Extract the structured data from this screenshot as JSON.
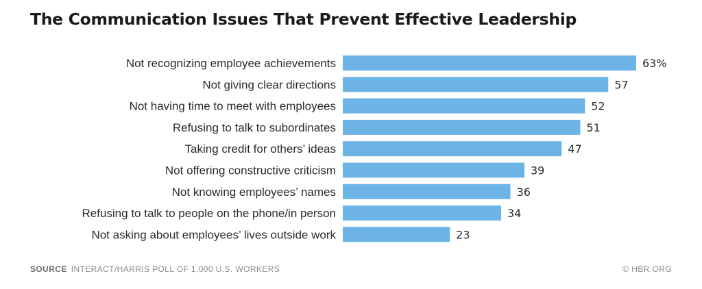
{
  "chart_data": {
    "type": "bar",
    "orientation": "horizontal",
    "title": "The Communication Issues That Prevent Effective Leadership",
    "categories": [
      "Not recognizing employee achievements",
      "Not giving clear directions",
      "Not having time to meet with employees",
      "Refusing to talk to subordinates",
      "Taking credit for others’ ideas",
      "Not offering constructive criticism",
      "Not knowing employees’ names",
      "Refusing to talk to people on the phone/in person",
      "Not asking about employees’ lives outside work"
    ],
    "values": [
      63,
      57,
      52,
      51,
      47,
      39,
      36,
      34,
      23
    ],
    "value_labels": [
      "63%",
      "57",
      "52",
      "51",
      "47",
      "39",
      "36",
      "34",
      "23"
    ],
    "xlim": [
      0,
      63
    ],
    "grid": false,
    "bar_color": "#6cb4e6"
  },
  "footer": {
    "source_label": "SOURCE",
    "source_text": "INTERACT/HARRIS POLL OF 1,000 U.S. WORKERS",
    "credit": "© HBR.ORG"
  }
}
